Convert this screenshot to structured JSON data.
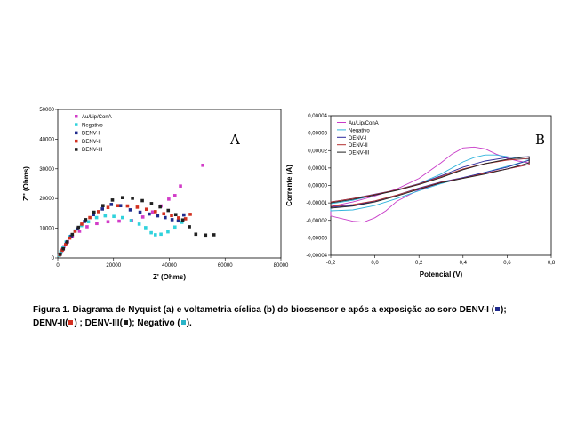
{
  "caption": {
    "main": "Figura 1.  Diagrama de Nyquist (a) e voltametria cíclica (b) do biossensor e após a exposição ao soro DENV-I (",
    "part2": ");",
    "line2a": "DENV-II(",
    "line2b": ") ; DENV-III(",
    "line2c": "); Negativo (",
    "line2d": ")."
  },
  "caption_colors": {
    "denv1": "#1f2a8c",
    "denv2": "#d23020",
    "denv3": "#202020",
    "negativo": "#2ab4c8"
  },
  "chart_data": [
    {
      "type": "scatter",
      "panel_label": "A",
      "xlabel": "Z' (Ohms)",
      "ylabel": "Z'' (Ohms)",
      "xlim": [
        0,
        80000
      ],
      "ylim": [
        0,
        50000
      ],
      "xticks": [
        "0",
        "20000",
        "40000",
        "60000",
        "80000"
      ],
      "yticks": [
        "0",
        "10000",
        "20000",
        "30000",
        "40000",
        "50000"
      ],
      "xtick_values": [
        0,
        20000,
        40000,
        60000,
        80000
      ],
      "ytick_values": [
        0,
        10000,
        20000,
        30000,
        40000,
        50000
      ],
      "legend": "top-left",
      "series": [
        {
          "name": "Au/Lip/ConA",
          "color": "#d23cc8",
          "x": [
            600,
            1300,
            2200,
            3500,
            5200,
            7800,
            10500,
            14000,
            18000,
            22000,
            26500,
            30500,
            34000,
            37000,
            39800,
            42000,
            44000,
            52000
          ],
          "y": [
            1000,
            2300,
            3800,
            5500,
            7200,
            9000,
            10500,
            11600,
            12200,
            12400,
            12600,
            13800,
            15500,
            17500,
            19800,
            21000,
            24200,
            31200
          ]
        },
        {
          "name": "Negativo",
          "color": "#30d2dc",
          "x": [
            500,
            1100,
            1900,
            3000,
            4400,
            6200,
            8500,
            11000,
            13900,
            17000,
            20100,
            23200,
            26300,
            29200,
            31500,
            33500,
            35000,
            37000,
            39500,
            42000,
            44500
          ],
          "y": [
            900,
            2100,
            3600,
            5400,
            7200,
            9100,
            10900,
            12200,
            13600,
            14200,
            14000,
            13600,
            12600,
            11400,
            10200,
            8500,
            7800,
            8000,
            8800,
            10400,
            12000
          ]
        },
        {
          "name": "DENV-I",
          "color": "#1f2a8c",
          "x": [
            800,
            1800,
            3100,
            4800,
            7000,
            9600,
            12800,
            16000,
            19200,
            22500,
            26000,
            29500,
            32800,
            35800,
            38500,
            41000,
            43200,
            45200
          ],
          "y": [
            1200,
            2900,
            5000,
            7300,
            9800,
            12300,
            14600,
            16500,
            18000,
            17600,
            16200,
            15400,
            14800,
            14200,
            13600,
            12900,
            12500,
            14500
          ]
        },
        {
          "name": "DENV-II",
          "color": "#d23020",
          "x": [
            700,
            1600,
            2800,
            4300,
            6200,
            8600,
            11500,
            14600,
            18000,
            21500,
            25000,
            28500,
            31800,
            35000,
            38000,
            40800,
            43300,
            45800,
            47500
          ],
          "y": [
            1100,
            2600,
            4500,
            6700,
            9000,
            11400,
            13600,
            15600,
            17000,
            17600,
            17500,
            17100,
            16400,
            15600,
            14900,
            14300,
            13500,
            13200,
            14700
          ]
        },
        {
          "name": "DENV-III",
          "color": "#202020",
          "x": [
            900,
            2000,
            3400,
            5200,
            7400,
            10000,
            13000,
            16200,
            19600,
            23200,
            26800,
            30300,
            33600,
            36700,
            39600,
            42300,
            44800,
            47200,
            49500,
            53000,
            56000
          ],
          "y": [
            1300,
            3100,
            5400,
            7900,
            10300,
            12900,
            15400,
            17600,
            19500,
            20300,
            20100,
            19300,
            18300,
            17200,
            16000,
            14600,
            12800,
            10500,
            8000,
            7700,
            7800
          ]
        }
      ]
    },
    {
      "type": "line",
      "panel_label": "B",
      "xlabel": "Potencial (V)",
      "ylabel": "Corrente (A)",
      "xlim": [
        -0.2,
        0.8
      ],
      "ylim": [
        -4e-05,
        4e-05
      ],
      "xticks": [
        "-0,2",
        "0,0",
        "0,2",
        "0,4",
        "0,6",
        "0,8"
      ],
      "yticks": [
        "-0,00004",
        "-0,00003",
        "-0,00002",
        "-0,00001",
        "0,00000",
        "0,00001",
        "0,00002",
        "0,00003",
        "0,00004"
      ],
      "xtick_values": [
        -0.2,
        0,
        0.2,
        0.4,
        0.6,
        0.8
      ],
      "ytick_values": [
        -4e-05,
        -3e-05,
        -2e-05,
        -1e-05,
        0,
        1e-05,
        2e-05,
        3e-05,
        4e-05
      ],
      "legend": "top-left",
      "series": [
        {
          "name": "Au/Lip/ConA",
          "color": "#c83cc8",
          "x": [
            -0.2,
            -0.1,
            0.0,
            0.1,
            0.2,
            0.3,
            0.35,
            0.4,
            0.45,
            0.5,
            0.55,
            0.6,
            0.65,
            0.7,
            0.7,
            0.6,
            0.5,
            0.4,
            0.3,
            0.2,
            0.1,
            0.05,
            0.0,
            -0.05,
            -0.1,
            -0.2
          ],
          "y": [
            -1.2e-05,
            -9.5e-06,
            -6e-06,
            -2e-06,
            4e-06,
            1.3e-05,
            1.8e-05,
            2.15e-05,
            2.2e-05,
            2.1e-05,
            1.8e-05,
            1.55e-05,
            1.4e-05,
            1.3e-05,
            1.2e-05,
            9.5e-06,
            7e-06,
            4.5e-06,
            1.5e-06,
            -2.5e-06,
            -9e-06,
            -1.45e-05,
            -1.85e-05,
            -2.1e-05,
            -2.05e-05,
            -1.75e-05
          ]
        },
        {
          "name": "Negativo",
          "color": "#30b4dc",
          "x": [
            -0.2,
            -0.1,
            0.0,
            0.1,
            0.2,
            0.3,
            0.4,
            0.45,
            0.5,
            0.55,
            0.6,
            0.65,
            0.7,
            0.7,
            0.6,
            0.5,
            0.4,
            0.3,
            0.2,
            0.1,
            0.0,
            -0.1,
            -0.2
          ],
          "y": [
            -1.05e-05,
            -8.5e-06,
            -5.5e-06,
            -2.5e-06,
            1e-06,
            6.5e-06,
            1.35e-05,
            1.6e-05,
            1.75e-05,
            1.75e-05,
            1.65e-05,
            1.55e-05,
            1.5e-05,
            1.45e-05,
            1.1e-05,
            7.5e-06,
            4.5e-06,
            1e-06,
            -3e-06,
            -7.5e-06,
            -1.15e-05,
            -1.4e-05,
            -1.45e-05
          ]
        },
        {
          "name": "DENV-I",
          "color": "#2c2a9c",
          "x": [
            -0.2,
            -0.1,
            0.0,
            0.1,
            0.2,
            0.3,
            0.4,
            0.5,
            0.6,
            0.7,
            0.7,
            0.6,
            0.5,
            0.4,
            0.3,
            0.2,
            0.1,
            0.0,
            -0.1,
            -0.2
          ],
          "y": [
            -9.5e-06,
            -7.5e-06,
            -5e-06,
            -2.5e-06,
            1e-06,
            5.5e-06,
            1.05e-05,
            1.4e-05,
            1.6e-05,
            1.65e-05,
            1.45e-05,
            1.05e-05,
            7.5e-06,
            4.5e-06,
            2e-06,
            -1.5e-06,
            -5.5e-06,
            -9e-06,
            -1.15e-05,
            -1.25e-05
          ]
        },
        {
          "name": "DENV-II",
          "color": "#b43030",
          "x": [
            -0.2,
            -0.1,
            0.0,
            0.1,
            0.2,
            0.3,
            0.4,
            0.5,
            0.6,
            0.7,
            0.7,
            0.6,
            0.5,
            0.4,
            0.3,
            0.2,
            0.1,
            0.0,
            -0.1,
            -0.2
          ],
          "y": [
            -9.5e-06,
            -7.5e-06,
            -5.2e-06,
            -2.5e-06,
            8e-07,
            5e-06,
            9.5e-06,
            1.25e-05,
            1.45e-05,
            1.55e-05,
            1.2e-05,
            9.5e-06,
            7e-06,
            4.2e-06,
            1.8e-06,
            -1.8e-06,
            -5.5e-06,
            -8.8e-06,
            -1.1e-05,
            -1.2e-05
          ]
        },
        {
          "name": "DENV-III",
          "color": "#202020",
          "x": [
            -0.2,
            -0.1,
            0.0,
            0.1,
            0.2,
            0.3,
            0.4,
            0.5,
            0.6,
            0.7,
            0.7,
            0.6,
            0.5,
            0.4,
            0.3,
            0.2,
            0.1,
            0.0,
            -0.1,
            -0.2
          ],
          "y": [
            -1e-05,
            -8e-06,
            -5.5e-06,
            -2.8e-06,
            5e-07,
            4.5e-06,
            9e-06,
            1.25e-05,
            1.5e-05,
            1.65e-05,
            1.3e-05,
            9.5e-06,
            6.5e-06,
            4e-06,
            1.5e-06,
            -2.2e-06,
            -6e-06,
            -9.5e-06,
            -1.18e-05,
            -1.3e-05
          ]
        }
      ]
    }
  ]
}
